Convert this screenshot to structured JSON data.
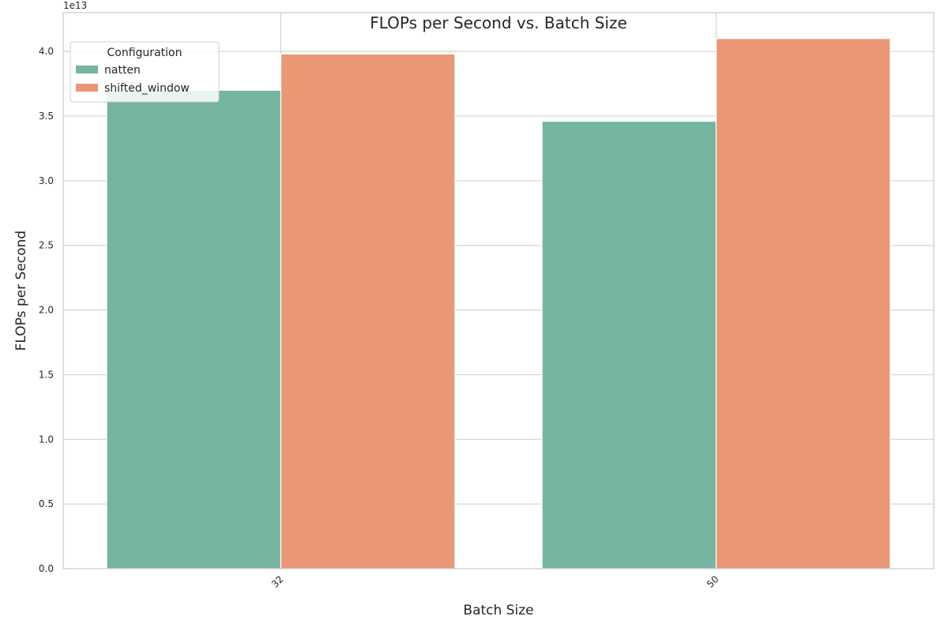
{
  "chart_data": {
    "type": "bar",
    "title": "FLOPs per Second vs. Batch Size",
    "xlabel": "Batch Size",
    "ylabel": "FLOPs per Second",
    "y_offset_label": "1e13",
    "categories": [
      "32",
      "50"
    ],
    "series": [
      {
        "name": "natten",
        "color": "#74b4a0",
        "values": [
          37000000000000.0,
          34600000000000.0
        ]
      },
      {
        "name": "shifted_window",
        "color": "#e99775",
        "values": [
          39800000000000.0,
          41000000000000.0
        ]
      }
    ],
    "ylim": [
      0,
      43000000000000.0
    ],
    "y_ticks": [
      0,
      5000000000000.0,
      10000000000000.0,
      15000000000000.0,
      20000000000000.0,
      25000000000000.0,
      30000000000000.0,
      35000000000000.0,
      40000000000000.0
    ],
    "y_tick_labels": [
      "0.0",
      "0.5",
      "1.0",
      "1.5",
      "2.0",
      "2.5",
      "3.0",
      "3.5",
      "4.0"
    ],
    "legend": {
      "title": "Configuration",
      "placement": "top-left"
    },
    "grid": true
  }
}
